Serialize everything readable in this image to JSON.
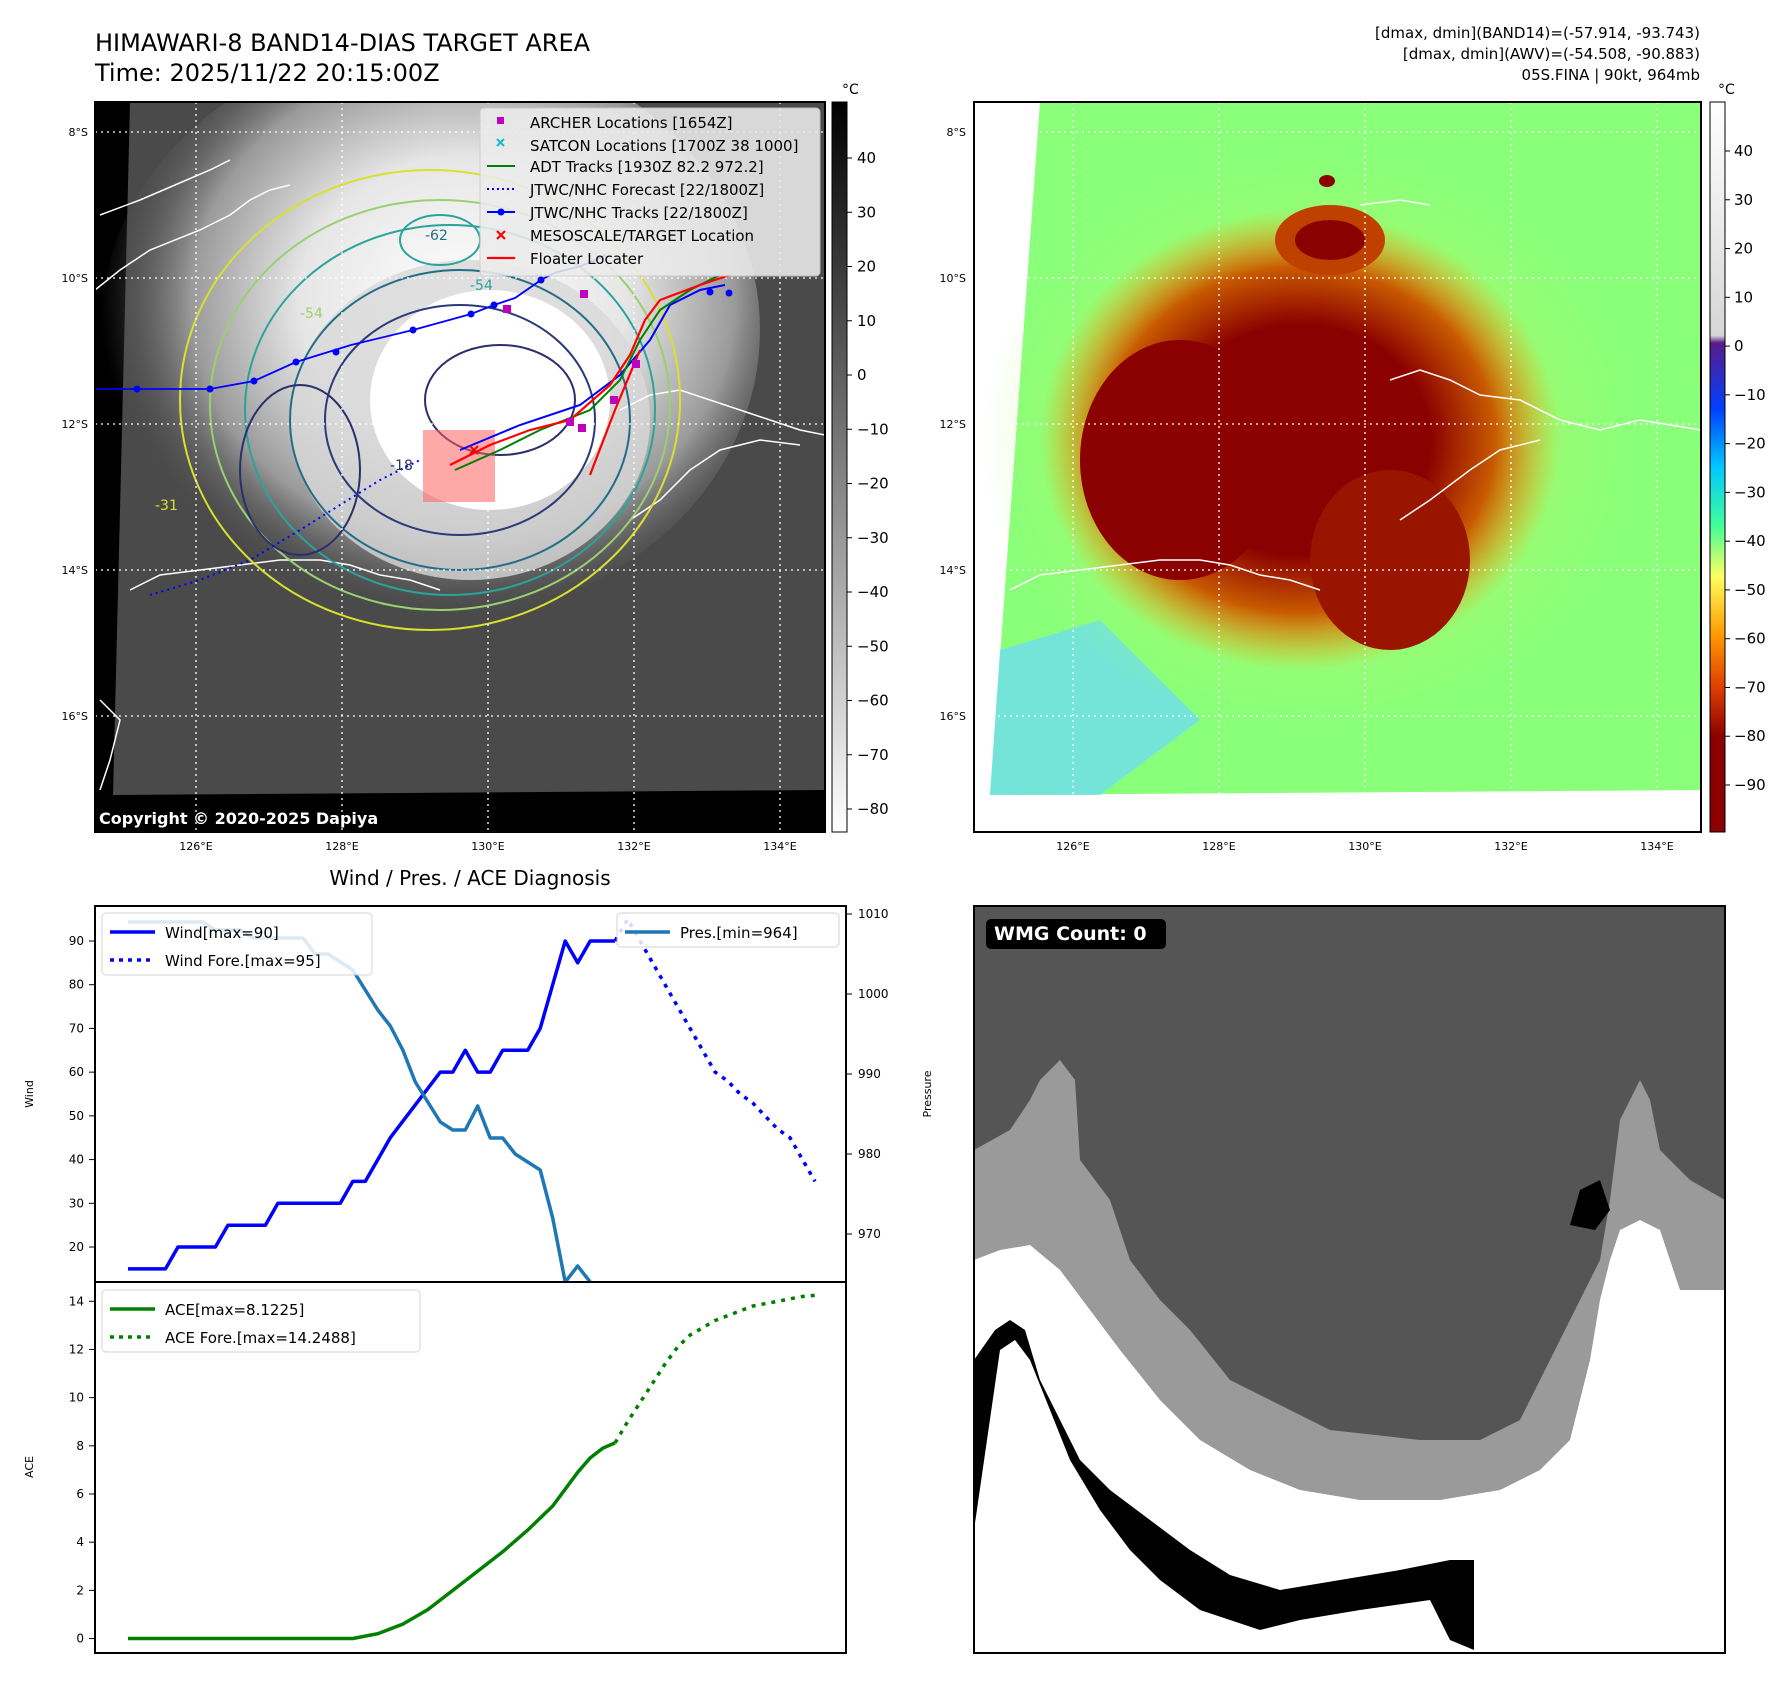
{
  "header": {
    "title_line1": "HIMAWARI-8 BAND14-DIAS TARGET AREA",
    "title_line2": "Time: 2025/11/22 20:15:00Z",
    "info_line1": "[dmax, dmin](BAND14)=(-57.914, -93.743)",
    "info_line2": "[dmax, dmin](AWV)=(-54.508, -90.883)",
    "info_line3": "05S.FINA | 90kt, 964mb"
  },
  "map": {
    "lat_labels": [
      "8°S",
      "10°S",
      "12°S",
      "14°S",
      "16°S"
    ],
    "lon_labels": [
      "126°E",
      "128°E",
      "130°E",
      "132°E",
      "134°E"
    ],
    "copyright": "Copyright © 2020-2025 Dapiya",
    "contour_labels": [
      "-18",
      "-54",
      "-62",
      "-54",
      "-31"
    ],
    "legend": [
      {
        "label": "ARCHER Locations [1654Z]",
        "color": "#bf00bf",
        "kind": "square"
      },
      {
        "label": "SATCON Locations [1700Z 38 1000]",
        "color": "#17becf",
        "kind": "x"
      },
      {
        "label": "ADT Tracks [1930Z 82.2 972.2]",
        "color": "#008000",
        "kind": "line"
      },
      {
        "label": "JTWC/NHC Forecast [22/1800Z]",
        "color": "#0000ff",
        "kind": "dotted"
      },
      {
        "label": "JTWC/NHC Tracks [22/1800Z]",
        "color": "#0000ff",
        "kind": "line-dot"
      },
      {
        "label": "MESOSCALE/TARGET Location",
        "color": "#ff0000",
        "kind": "x"
      },
      {
        "label": "Floater Locater",
        "color": "#ff0000",
        "kind": "line"
      }
    ]
  },
  "colorbar_gray": {
    "unit": "°C",
    "ticks": [
      "40",
      "30",
      "20",
      "10",
      "0",
      "−10",
      "−20",
      "−30",
      "−40",
      "−50",
      "−60",
      "−70",
      "−80"
    ]
  },
  "colorbar_color": {
    "unit": "°C",
    "ticks": [
      "40",
      "30",
      "20",
      "10",
      "0",
      "−10",
      "−20",
      "−30",
      "−40",
      "−50",
      "−60",
      "−70",
      "−80",
      "−90"
    ]
  },
  "wmg": {
    "label": "WMG Count: 0"
  },
  "colors": {
    "wind": "#0000ff",
    "pres": "#1f77b4",
    "ace": "#008000",
    "target": "#ff0000",
    "archer": "#bf00bf",
    "satcon": "#17becf"
  },
  "chart_data": [
    {
      "type": "line",
      "title": "Wind / Pres. / ACE Diagnosis",
      "ylabel": "Wind",
      "ylim": [
        12,
        98
      ],
      "yticks": [
        20,
        30,
        40,
        50,
        60,
        70,
        80,
        90
      ],
      "series": [
        {
          "name": "Wind[max=90]",
          "style": "solid",
          "color": "#0000ff",
          "x": [
            0,
            3,
            4,
            7,
            8,
            11,
            12,
            17,
            18,
            19,
            20,
            21,
            25,
            26,
            27,
            28,
            29,
            30,
            32,
            33,
            34,
            35,
            36,
            37,
            38,
            39
          ],
          "values": [
            15,
            15,
            20,
            20,
            25,
            25,
            30,
            30,
            35,
            35,
            40,
            45,
            60,
            60,
            65,
            60,
            60,
            65,
            65,
            70,
            80,
            90,
            85,
            90,
            90,
            90
          ]
        },
        {
          "name": "Wind Fore.[max=95]",
          "style": "dotted",
          "color": "#0000ff",
          "x": [
            39,
            40,
            41,
            42,
            43,
            44,
            45,
            46,
            47,
            48,
            49,
            50,
            51,
            52,
            53,
            54,
            55
          ],
          "values": [
            90,
            95,
            90,
            85,
            80,
            75,
            70,
            65,
            60,
            58,
            55,
            53,
            50,
            47,
            45,
            40,
            35
          ]
        }
      ]
    },
    {
      "type": "line",
      "ylabel": "Pressure",
      "ylim": [
        964,
        1011
      ],
      "yticks": [
        970,
        980,
        990,
        1000,
        1010
      ],
      "series": [
        {
          "name": "Pres.[min=964]",
          "style": "solid",
          "color": "#1f77b4",
          "x": [
            0,
            6,
            7,
            9,
            10,
            14,
            15,
            16,
            17,
            18,
            20,
            21,
            22,
            23,
            25,
            26,
            27,
            28,
            29,
            30,
            31,
            32,
            33,
            34,
            35,
            36,
            37
          ],
          "values": [
            1009,
            1009,
            1008,
            1008,
            1007,
            1007,
            1005,
            1005,
            1004,
            1003,
            998,
            996,
            993,
            989,
            984,
            983,
            983,
            986,
            982,
            982,
            980,
            979,
            978,
            972,
            964,
            966,
            964
          ]
        }
      ]
    },
    {
      "type": "line",
      "ylabel": "ACE",
      "ylim": [
        -0.6,
        14.8
      ],
      "yticks": [
        0,
        2,
        4,
        6,
        8,
        10,
        12,
        14
      ],
      "series": [
        {
          "name": "ACE[max=8.1225]",
          "style": "solid",
          "color": "#008000",
          "x": [
            0,
            18,
            20,
            22,
            24,
            26,
            28,
            30,
            32,
            34,
            35,
            36,
            37,
            38,
            39
          ],
          "values": [
            0,
            0,
            0.2,
            0.6,
            1.2,
            2,
            2.8,
            3.6,
            4.5,
            5.5,
            6.2,
            6.9,
            7.5,
            7.9,
            8.1225
          ]
        },
        {
          "name": "ACE Fore.[max=14.2488]",
          "style": "dotted",
          "color": "#008000",
          "x": [
            39,
            40,
            41,
            42,
            43,
            44,
            45,
            46,
            47,
            48,
            49,
            50,
            51,
            52,
            53,
            54,
            55
          ],
          "values": [
            8.1225,
            9,
            9.8,
            10.6,
            11.4,
            12.1,
            12.6,
            12.9,
            13.2,
            13.4,
            13.6,
            13.8,
            13.9,
            14,
            14.1,
            14.2,
            14.2488
          ]
        }
      ]
    }
  ]
}
